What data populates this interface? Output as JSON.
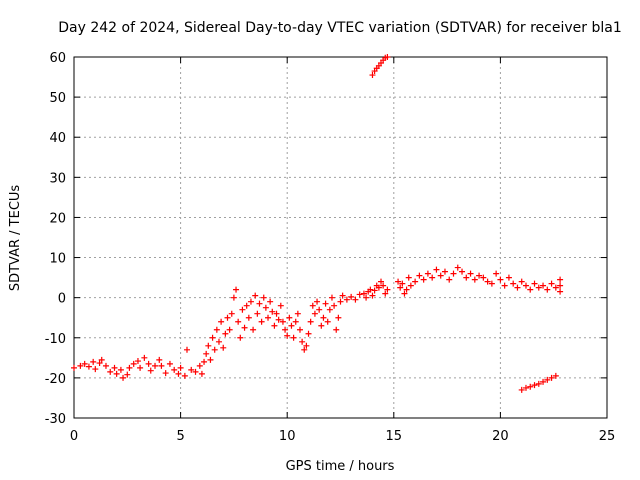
{
  "chart_data": {
    "type": "scatter",
    "title": "Day 242 of 2024, Sidereal Day-to-day VTEC variation (SDTVAR) for receiver bla1",
    "xlabel": "GPS time / hours",
    "ylabel": "SDTVAR / TECUs",
    "xlim": [
      0,
      25
    ],
    "ylim": [
      -30,
      60
    ],
    "xticks": [
      "0",
      "5",
      "10",
      "15",
      "20",
      "25"
    ],
    "yticks": [
      "-30",
      "-20",
      "-10",
      "0",
      "10",
      "20",
      "30",
      "40",
      "50",
      "60"
    ],
    "grid": true,
    "marker": "plus",
    "color": "#ff0000",
    "series": [
      {
        "name": "SDTVAR",
        "points": [
          [
            0.0,
            -17.5
          ],
          [
            0.3,
            -17.0
          ],
          [
            0.5,
            -16.5
          ],
          [
            0.7,
            -17.2
          ],
          [
            0.9,
            -16.0
          ],
          [
            1.0,
            -17.8
          ],
          [
            1.2,
            -16.3
          ],
          [
            1.3,
            -15.5
          ],
          [
            1.5,
            -17.0
          ],
          [
            1.7,
            -18.5
          ],
          [
            1.9,
            -17.5
          ],
          [
            2.0,
            -19.0
          ],
          [
            2.2,
            -18.0
          ],
          [
            2.3,
            -20.0
          ],
          [
            2.5,
            -19.2
          ],
          [
            2.6,
            -17.5
          ],
          [
            2.8,
            -16.5
          ],
          [
            3.0,
            -15.8
          ],
          [
            3.1,
            -17.5
          ],
          [
            3.3,
            -15.0
          ],
          [
            3.5,
            -16.5
          ],
          [
            3.6,
            -18.2
          ],
          [
            3.8,
            -17.0
          ],
          [
            4.0,
            -15.5
          ],
          [
            4.1,
            -17.0
          ],
          [
            4.3,
            -18.8
          ],
          [
            4.5,
            -16.5
          ],
          [
            4.7,
            -18.0
          ],
          [
            4.9,
            -19.0
          ],
          [
            5.0,
            -17.5
          ],
          [
            5.2,
            -19.5
          ],
          [
            5.3,
            -13.0
          ],
          [
            5.5,
            -18.0
          ],
          [
            5.7,
            -18.5
          ],
          [
            5.9,
            -17.0
          ],
          [
            6.0,
            -19.0
          ],
          [
            6.1,
            -16.0
          ],
          [
            6.2,
            -14.0
          ],
          [
            6.3,
            -12.0
          ],
          [
            6.4,
            -15.5
          ],
          [
            6.5,
            -10.0
          ],
          [
            6.6,
            -13.0
          ],
          [
            6.7,
            -8.0
          ],
          [
            6.8,
            -11.0
          ],
          [
            6.9,
            -6.0
          ],
          [
            7.0,
            -12.5
          ],
          [
            7.1,
            -9.0
          ],
          [
            7.2,
            -5.0
          ],
          [
            7.3,
            -8.0
          ],
          [
            7.4,
            -4.0
          ],
          [
            7.5,
            0.0
          ],
          [
            7.6,
            2.0
          ],
          [
            7.7,
            -6.0
          ],
          [
            7.8,
            -10.0
          ],
          [
            7.9,
            -3.0
          ],
          [
            8.0,
            -7.5
          ],
          [
            8.1,
            -2.0
          ],
          [
            8.2,
            -5.0
          ],
          [
            8.3,
            -1.0
          ],
          [
            8.4,
            -8.0
          ],
          [
            8.5,
            0.5
          ],
          [
            8.6,
            -4.0
          ],
          [
            8.7,
            -1.5
          ],
          [
            8.8,
            -6.0
          ],
          [
            8.9,
            0.0
          ],
          [
            9.0,
            -2.5
          ],
          [
            9.1,
            -5.0
          ],
          [
            9.2,
            -1.0
          ],
          [
            9.3,
            -3.5
          ],
          [
            9.4,
            -7.0
          ],
          [
            9.5,
            -4.0
          ],
          [
            9.6,
            -5.5
          ],
          [
            9.7,
            -2.0
          ],
          [
            9.8,
            -6.0
          ],
          [
            9.9,
            -8.0
          ],
          [
            10.0,
            -9.5
          ],
          [
            10.1,
            -5.0
          ],
          [
            10.2,
            -7.0
          ],
          [
            10.3,
            -10.0
          ],
          [
            10.4,
            -6.0
          ],
          [
            10.5,
            -4.0
          ],
          [
            10.6,
            -8.0
          ],
          [
            10.7,
            -11.0
          ],
          [
            10.8,
            -13.0
          ],
          [
            10.9,
            -12.0
          ],
          [
            11.0,
            -9.0
          ],
          [
            11.1,
            -6.0
          ],
          [
            11.2,
            -2.0
          ],
          [
            11.3,
            -4.0
          ],
          [
            11.4,
            -1.0
          ],
          [
            11.5,
            -3.0
          ],
          [
            11.6,
            -7.0
          ],
          [
            11.7,
            -5.0
          ],
          [
            11.8,
            -1.5
          ],
          [
            11.9,
            -6.0
          ],
          [
            12.0,
            -3.0
          ],
          [
            12.1,
            0.0
          ],
          [
            12.2,
            -2.0
          ],
          [
            12.3,
            -8.0
          ],
          [
            12.4,
            -5.0
          ],
          [
            12.5,
            -1.0
          ],
          [
            12.6,
            0.5
          ],
          [
            12.8,
            -0.5
          ],
          [
            13.0,
            0.2
          ],
          [
            13.2,
            -0.5
          ],
          [
            13.4,
            0.8
          ],
          [
            13.6,
            1.0
          ],
          [
            13.7,
            0.0
          ],
          [
            13.8,
            1.5
          ],
          [
            13.9,
            2.0
          ],
          [
            14.0,
            0.5
          ],
          [
            14.1,
            1.8
          ],
          [
            14.2,
            3.0
          ],
          [
            14.3,
            2.5
          ],
          [
            14.4,
            4.0
          ],
          [
            14.5,
            3.0
          ],
          [
            14.6,
            1.0
          ],
          [
            14.7,
            2.0
          ],
          [
            14.0,
            55.5
          ],
          [
            14.1,
            56.5
          ],
          [
            14.2,
            57.2
          ],
          [
            14.3,
            57.8
          ],
          [
            14.4,
            58.5
          ],
          [
            14.5,
            59.2
          ],
          [
            14.6,
            59.8
          ],
          [
            14.7,
            60.0
          ],
          [
            15.2,
            4.0
          ],
          [
            15.3,
            2.5
          ],
          [
            15.4,
            3.5
          ],
          [
            15.5,
            1.0
          ],
          [
            15.6,
            2.0
          ],
          [
            15.7,
            5.0
          ],
          [
            15.8,
            3.0
          ],
          [
            16.0,
            4.0
          ],
          [
            16.2,
            5.5
          ],
          [
            16.4,
            4.5
          ],
          [
            16.6,
            6.0
          ],
          [
            16.8,
            5.0
          ],
          [
            17.0,
            7.0
          ],
          [
            17.2,
            5.5
          ],
          [
            17.4,
            6.5
          ],
          [
            17.6,
            4.5
          ],
          [
            17.8,
            6.0
          ],
          [
            18.0,
            7.5
          ],
          [
            18.2,
            6.5
          ],
          [
            18.4,
            5.0
          ],
          [
            18.6,
            6.0
          ],
          [
            18.8,
            4.5
          ],
          [
            19.0,
            5.5
          ],
          [
            19.2,
            5.0
          ],
          [
            19.4,
            4.0
          ],
          [
            19.6,
            3.5
          ],
          [
            19.8,
            6.0
          ],
          [
            20.0,
            4.5
          ],
          [
            20.2,
            3.0
          ],
          [
            20.4,
            5.0
          ],
          [
            20.6,
            3.5
          ],
          [
            20.8,
            2.5
          ],
          [
            21.0,
            4.0
          ],
          [
            21.2,
            3.0
          ],
          [
            21.4,
            2.0
          ],
          [
            21.6,
            3.5
          ],
          [
            21.8,
            2.5
          ],
          [
            22.0,
            3.0
          ],
          [
            22.2,
            2.0
          ],
          [
            22.4,
            3.5
          ],
          [
            22.6,
            2.5
          ],
          [
            22.8,
            3.0
          ],
          [
            22.8,
            4.5
          ],
          [
            22.8,
            1.5
          ],
          [
            21.0,
            -23.0
          ],
          [
            21.2,
            -22.5
          ],
          [
            21.4,
            -22.2
          ],
          [
            21.6,
            -21.8
          ],
          [
            21.8,
            -21.5
          ],
          [
            22.0,
            -21.0
          ],
          [
            22.2,
            -20.5
          ],
          [
            22.4,
            -20.0
          ],
          [
            22.6,
            -19.5
          ]
        ]
      }
    ]
  }
}
